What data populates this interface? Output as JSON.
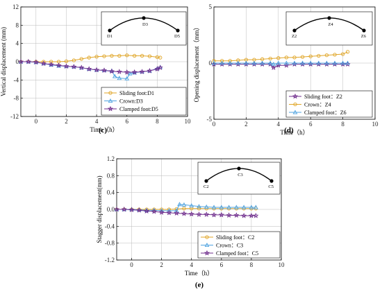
{
  "chart_data": [
    {
      "panel_label": "(c)",
      "type": "line",
      "xlabel": "Time（h）",
      "ylabel": "Vertical displacement (mm)",
      "xlim": [
        -1,
        10
      ],
      "ylim": [
        -12,
        12
      ],
      "xticks": [
        0,
        2,
        4,
        6,
        8,
        10
      ],
      "yticks": [
        -12,
        -8,
        -4,
        0,
        4,
        8,
        12
      ],
      "grid": true,
      "legend_position": "bottom-right",
      "inset_labels": [
        "D1",
        "D3",
        "D5"
      ],
      "series": [
        {
          "name": "Sliding foot:D1",
          "color": "#E0A526",
          "marker": "circle",
          "x": [
            -1,
            -0.5,
            0,
            0.5,
            1,
            1.5,
            2,
            2.5,
            3,
            3.5,
            4,
            4.5,
            5,
            5.5,
            6,
            6.5,
            7,
            7.5,
            8,
            8.2
          ],
          "y": [
            0,
            0,
            0,
            0,
            0,
            0,
            0.1,
            0.3,
            0.6,
            0.9,
            1.1,
            1.2,
            1.3,
            1.3,
            1.4,
            1.3,
            1.3,
            1.2,
            1.0,
            0.9
          ]
        },
        {
          "name": "Crown:D3",
          "color": "#4FA3E0",
          "marker": "triangle",
          "x": [
            -1,
            -0.5,
            0,
            0.5,
            1,
            1.5,
            2,
            2.5,
            3,
            3.5,
            4,
            4.5,
            5,
            5.2,
            5.5,
            6,
            6.2,
            6.5,
            7,
            7.5,
            8,
            8.2
          ],
          "y": [
            0,
            0,
            -0.1,
            -0.4,
            -0.7,
            -0.9,
            -1.0,
            -1.1,
            -1.3,
            -1.6,
            -1.8,
            -1.9,
            -2.0,
            -3.2,
            -3.6,
            -3.7,
            -2.6,
            -2.4,
            -2.2,
            -2.0,
            -1.5,
            -1.2
          ]
        },
        {
          "name": "Clamped foot:D5",
          "color": "#6E2B8B",
          "marker": "star",
          "x": [
            -1,
            -0.5,
            0,
            0.5,
            1,
            1.5,
            2,
            2.5,
            3,
            3.5,
            4,
            4.5,
            5,
            5.5,
            6,
            6.5,
            7,
            7.5,
            8,
            8.2
          ],
          "y": [
            0,
            0,
            -0.1,
            -0.4,
            -0.6,
            -0.8,
            -1.0,
            -1.1,
            -1.3,
            -1.6,
            -1.8,
            -1.9,
            -2.1,
            -2.2,
            -2.3,
            -2.3,
            -2.2,
            -2.0,
            -1.6,
            -1.3
          ]
        }
      ]
    },
    {
      "panel_label": "(d)",
      "type": "line",
      "xlabel": "Time（h）",
      "ylabel": "Opening displacement（mm）",
      "xlim": [
        0,
        10
      ],
      "ylim": [
        -5,
        5
      ],
      "xticks": [
        0,
        2,
        4,
        6,
        8,
        10
      ],
      "yticks": [
        -5,
        0,
        5
      ],
      "grid": true,
      "legend_position": "bottom-right",
      "inset_labels": [
        "Z2",
        "Z4",
        "Z6"
      ],
      "series": [
        {
          "name": "Sliding foot：Z2",
          "color": "#6E2B8B",
          "marker": "star",
          "x": [
            0,
            0.5,
            1,
            1.5,
            2,
            2.5,
            3,
            3.5,
            3.7,
            4,
            4.5,
            5,
            5.5,
            6,
            6.5,
            7,
            7.5,
            8,
            8.3
          ],
          "y": [
            -0.1,
            -0.1,
            -0.1,
            -0.1,
            -0.1,
            -0.1,
            -0.1,
            -0.1,
            -0.4,
            -0.2,
            -0.2,
            -0.1,
            -0.1,
            -0.1,
            -0.1,
            -0.1,
            -0.1,
            -0.1,
            -0.1
          ]
        },
        {
          "name": "Crown：Z4",
          "color": "#E0A526",
          "marker": "circle",
          "x": [
            0,
            0.5,
            1,
            1.5,
            2,
            2.5,
            3,
            3.5,
            4,
            4.5,
            5,
            5.5,
            6,
            6.5,
            7,
            7.5,
            8,
            8.3
          ],
          "y": [
            0.2,
            0.2,
            0.2,
            0.25,
            0.3,
            0.3,
            0.35,
            0.4,
            0.45,
            0.5,
            0.5,
            0.55,
            0.6,
            0.65,
            0.7,
            0.75,
            0.8,
            1.0
          ]
        },
        {
          "name": "Clamped foot：Z6",
          "color": "#4FA3E0",
          "marker": "triangle",
          "x": [
            0,
            0.5,
            1,
            1.5,
            2,
            2.5,
            3,
            3.5,
            3.7,
            4,
            4.5,
            5,
            5.5,
            6,
            6.5,
            7,
            7.5,
            8,
            8.3
          ],
          "y": [
            0,
            0,
            0,
            0,
            0,
            0,
            0,
            0,
            -0.1,
            0,
            0,
            0,
            0,
            0,
            0,
            0,
            0,
            0,
            0
          ]
        }
      ]
    },
    {
      "panel_label": "(e)",
      "type": "line",
      "xlabel": "Time（h）",
      "ylabel": "Stagger displacement(mm)",
      "xlim": [
        -1,
        10
      ],
      "ylim": [
        -1.2,
        1.2
      ],
      "xticks": [
        0,
        2,
        4,
        6,
        8,
        10
      ],
      "yticks": [
        -1.2,
        -0.8,
        -0.4,
        0.0,
        0.4,
        0.8,
        1.2
      ],
      "grid": true,
      "legend_position": "bottom-right",
      "inset_labels": [
        "C2",
        "C3",
        "C5"
      ],
      "series": [
        {
          "name": "Sliding foot：C2",
          "color": "#E0A526",
          "marker": "circle",
          "x": [
            -1,
            -0.5,
            0,
            0.5,
            1,
            1.5,
            2,
            2.5,
            3,
            3.5,
            4,
            4.5,
            5,
            5.5,
            6,
            6.5,
            7,
            7.5,
            8,
            8.3
          ],
          "y": [
            0,
            0,
            0,
            0,
            0,
            0,
            0,
            0,
            0.01,
            0.02,
            0.02,
            0.02,
            0.02,
            0.02,
            0.02,
            0.02,
            0.02,
            0.02,
            0.02,
            0.02
          ]
        },
        {
          "name": "Crown：C3",
          "color": "#4FA3E0",
          "marker": "triangle",
          "x": [
            -1,
            -0.5,
            0,
            0.5,
            1,
            1.5,
            2,
            2.5,
            3,
            3.2,
            3.5,
            4,
            4.5,
            5,
            5.5,
            6,
            6.5,
            7,
            7.5,
            8,
            8.3
          ],
          "y": [
            0,
            0,
            0,
            -0.01,
            -0.02,
            -0.02,
            -0.03,
            -0.03,
            -0.03,
            0.12,
            0.11,
            0.09,
            0.07,
            0.06,
            0.05,
            0.05,
            0.05,
            0.05,
            0.05,
            0.05,
            0.05
          ]
        },
        {
          "name": "Clamped foot：C5",
          "color": "#6E2B8B",
          "marker": "star",
          "x": [
            -1,
            -0.5,
            0,
            0.5,
            1,
            1.5,
            2,
            2.5,
            3,
            3.5,
            4,
            4.5,
            5,
            5.5,
            6,
            6.5,
            7,
            7.5,
            8,
            8.3
          ],
          "y": [
            0,
            0,
            -0.01,
            -0.02,
            -0.04,
            -0.05,
            -0.07,
            -0.08,
            -0.09,
            -0.1,
            -0.11,
            -0.12,
            -0.12,
            -0.13,
            -0.13,
            -0.14,
            -0.14,
            -0.15,
            -0.15,
            -0.15
          ]
        }
      ]
    }
  ]
}
